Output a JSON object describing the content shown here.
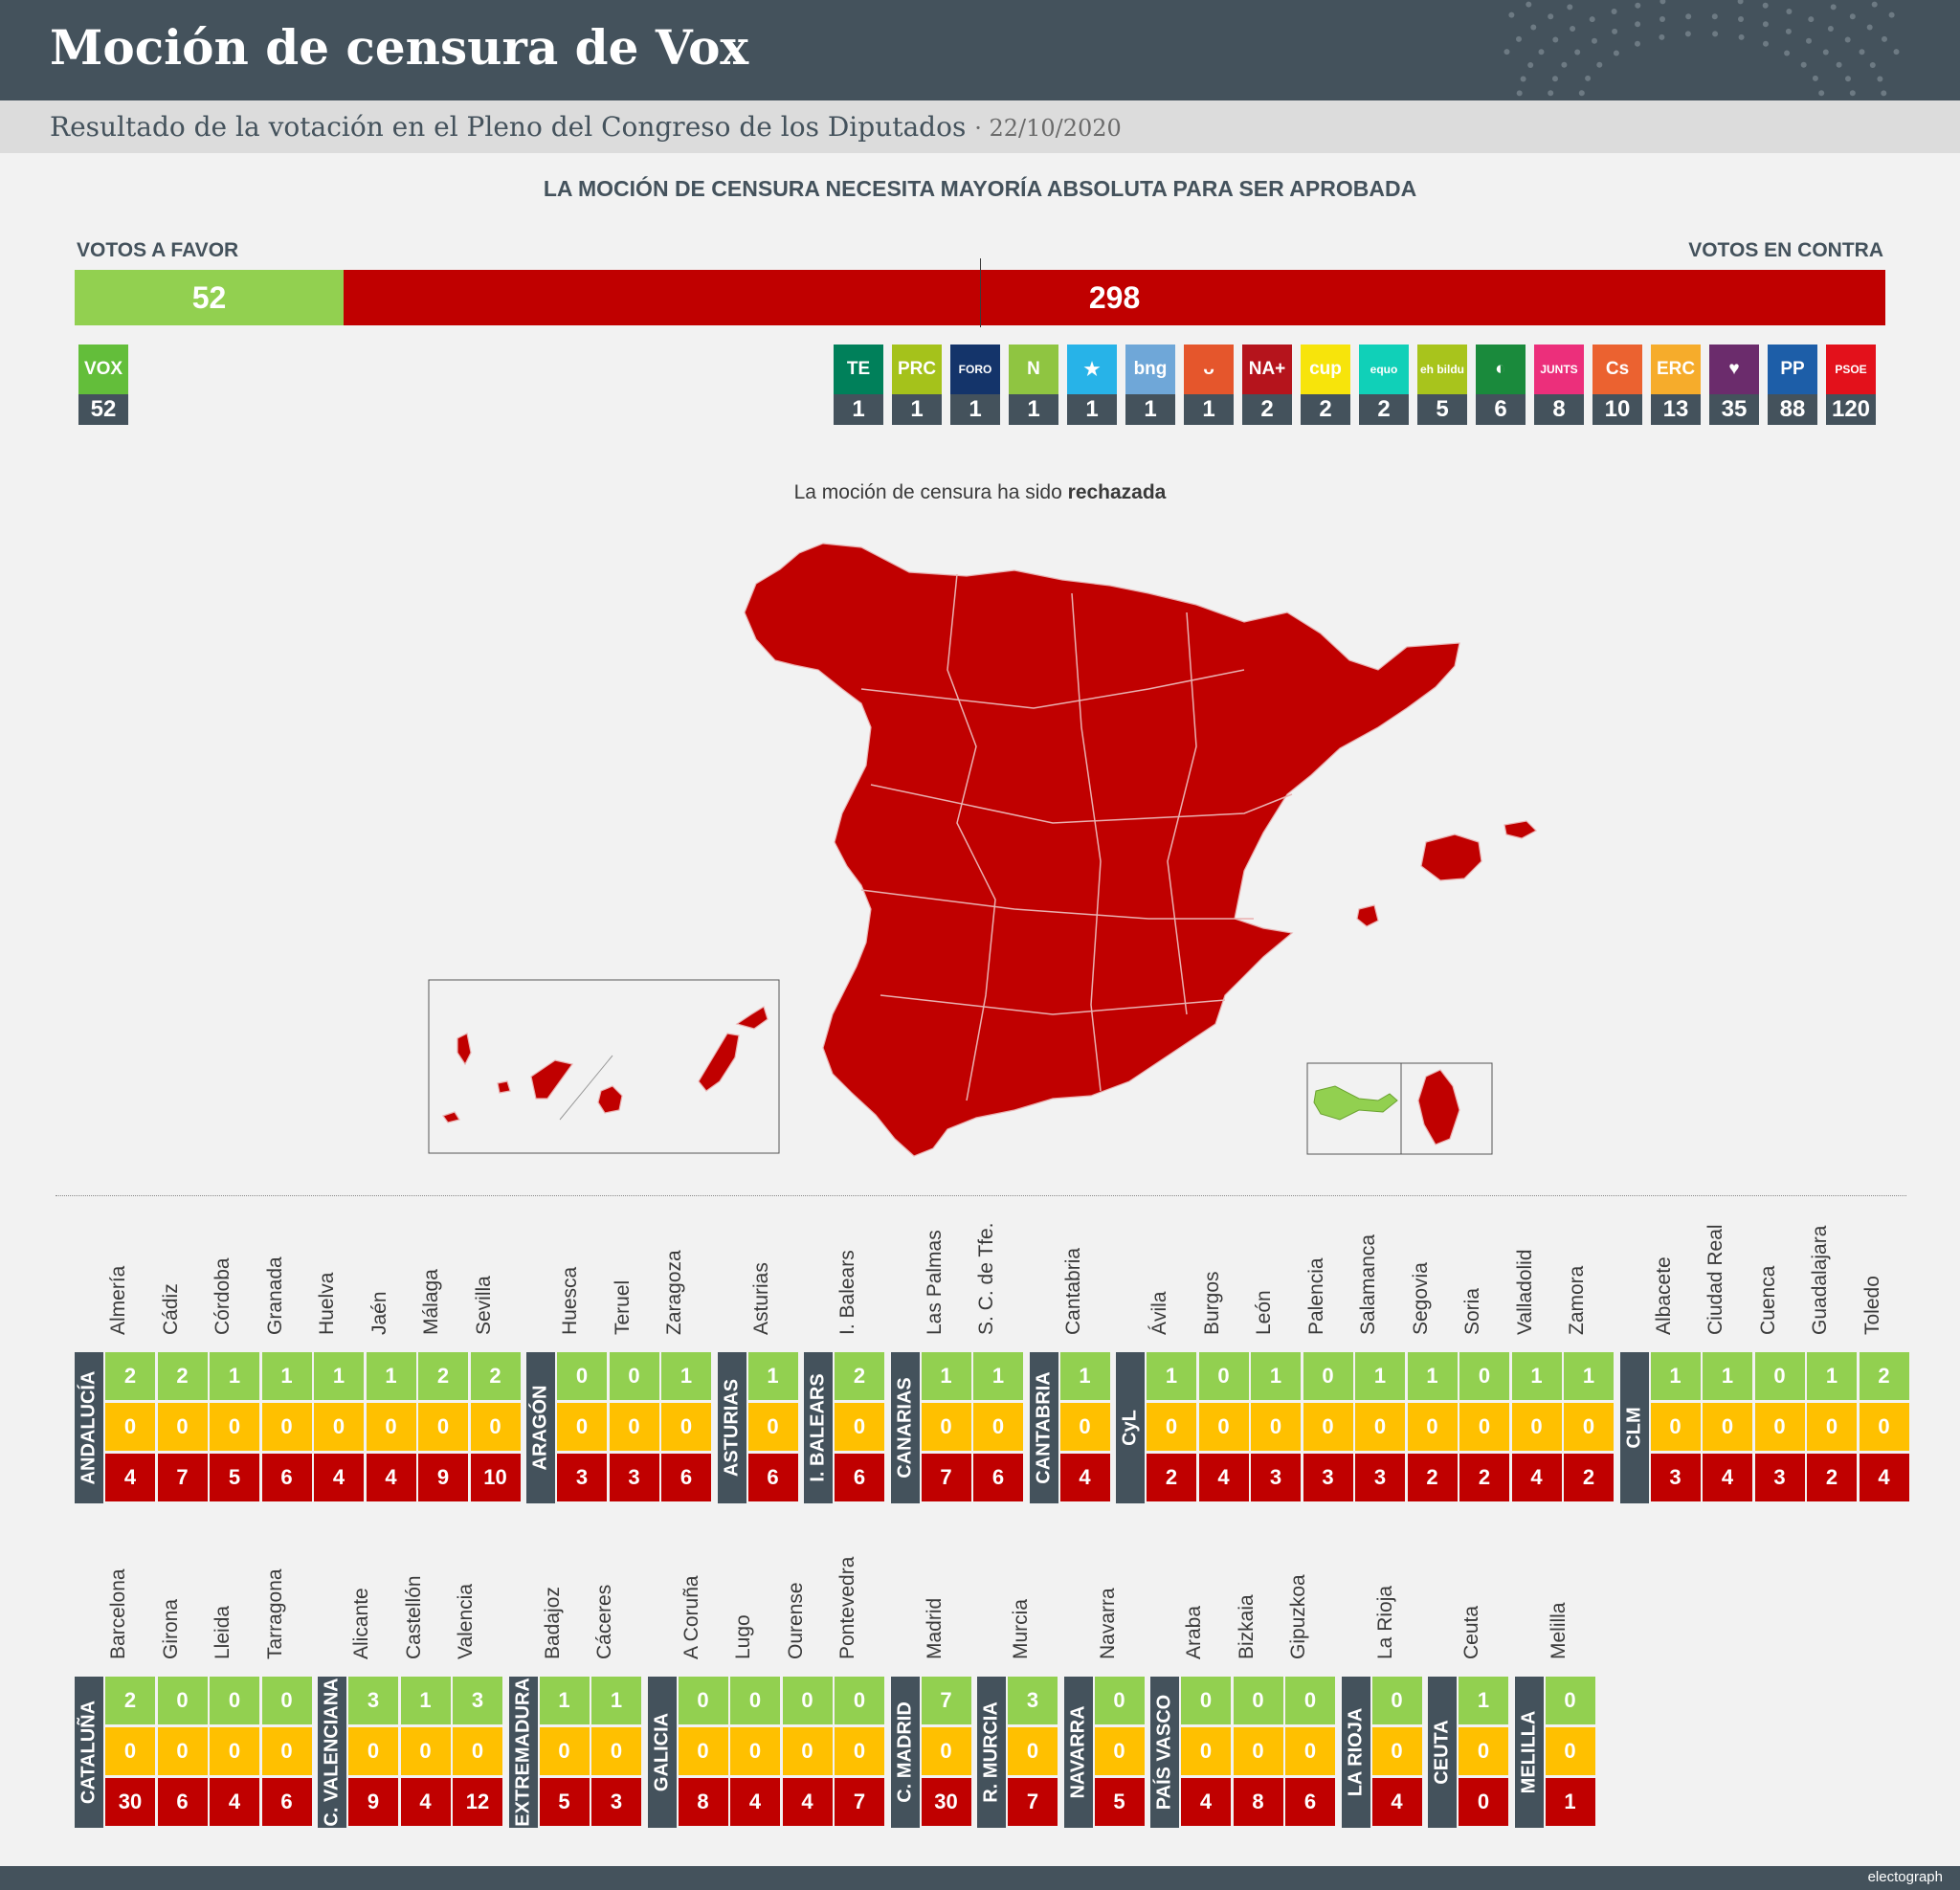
{
  "header": {
    "title": "Moción de censura de Vox",
    "subtitle": "Resultado de la votación en el Pleno del Congreso de los Diputados",
    "date": "· 22/10/2020"
  },
  "headline": "LA MOCIÓN DE CENSURA NECESITA MAYORÍA ABSOLUTA PARA SER APROBADA",
  "colors": {
    "favor": "#92d050",
    "contra": "#c00000",
    "abstencion": "#ffc000",
    "dark": "#44525c"
  },
  "chart_data": {
    "type": "bar",
    "title": "LA MOCIÓN DE CENSURA NECESITA MAYORÍA ABSOLUTA PARA SER APROBADA",
    "votes": {
      "favor_label": "VOTOS A FAVOR",
      "contra_label": "VOTOS EN CONTRA",
      "favor": 52,
      "contra": 298,
      "total_seats": 350,
      "majority": 176
    },
    "parties_favor": [
      {
        "name": "VOX",
        "logo": "VOX",
        "seats": 52,
        "color": "#63be3a"
      }
    ],
    "parties_contra": [
      {
        "name": "Teruel Existe",
        "logo": "TE",
        "seats": 1,
        "color": "#00805a"
      },
      {
        "name": "PRC",
        "logo": "PRC",
        "seats": 1,
        "color": "#a5c21b"
      },
      {
        "name": "Foro",
        "logo": "FORO",
        "seats": 1,
        "color": "#14346a"
      },
      {
        "name": "NC",
        "logo": "N",
        "seats": 1,
        "color": "#8fc541"
      },
      {
        "name": "Coalición Canaria",
        "logo": "★",
        "seats": 1,
        "color": "#27b3e8"
      },
      {
        "name": "BNG",
        "logo": "bng",
        "seats": 1,
        "color": "#6fa7d8"
      },
      {
        "name": "CUP-PR",
        "logo": "ᴗ",
        "seats": 1,
        "color": "#e5562c"
      },
      {
        "name": "NA+",
        "logo": "NA+",
        "seats": 2,
        "color": "#b5141c"
      },
      {
        "name": "CUP",
        "logo": "cup",
        "seats": 2,
        "color": "#f7e40b"
      },
      {
        "name": "Más País-Equo",
        "logo": "equo",
        "seats": 2,
        "color": "#10d0b8"
      },
      {
        "name": "EH Bildu",
        "logo": "eh bildu",
        "seats": 5,
        "color": "#a8c41c"
      },
      {
        "name": "PNV",
        "logo": "◐",
        "seats": 6,
        "color": "#1a8a3c"
      },
      {
        "name": "JxCat",
        "logo": "JUNTS",
        "seats": 8,
        "color": "#ec2f7b"
      },
      {
        "name": "Cs",
        "logo": "Cs",
        "seats": 10,
        "color": "#eb6230"
      },
      {
        "name": "ERC",
        "logo": "ERC",
        "seats": 13,
        "color": "#f6ac2b"
      },
      {
        "name": "Podemos",
        "logo": "♥",
        "seats": 35,
        "color": "#6b2c6c"
      },
      {
        "name": "PP",
        "logo": "PP",
        "seats": 88,
        "color": "#1d5ea8"
      },
      {
        "name": "PSOE",
        "logo": "PSOE",
        "seats": 120,
        "color": "#e3111b"
      }
    ],
    "result_text": "La moción de censura ha sido",
    "result_word": "rechazada",
    "regions": [
      {
        "region": "ANDALUCÍA",
        "provinces": [
          {
            "name": "Almería",
            "favor": 2,
            "abst": 0,
            "contra": 4
          },
          {
            "name": "Cádiz",
            "favor": 2,
            "abst": 0,
            "contra": 7
          },
          {
            "name": "Córdoba",
            "favor": 1,
            "abst": 0,
            "contra": 5
          },
          {
            "name": "Granada",
            "favor": 1,
            "abst": 0,
            "contra": 6
          },
          {
            "name": "Huelva",
            "favor": 1,
            "abst": 0,
            "contra": 4
          },
          {
            "name": "Jaén",
            "favor": 1,
            "abst": 0,
            "contra": 4
          },
          {
            "name": "Málaga",
            "favor": 2,
            "abst": 0,
            "contra": 9
          },
          {
            "name": "Sevilla",
            "favor": 2,
            "abst": 0,
            "contra": 10
          }
        ]
      },
      {
        "region": "ARAGÓN",
        "provinces": [
          {
            "name": "Huesca",
            "favor": 0,
            "abst": 0,
            "contra": 3
          },
          {
            "name": "Teruel",
            "favor": 0,
            "abst": 0,
            "contra": 3
          },
          {
            "name": "Zaragoza",
            "favor": 1,
            "abst": 0,
            "contra": 6
          }
        ]
      },
      {
        "region": "ASTURIAS",
        "provinces": [
          {
            "name": "Asturias",
            "favor": 1,
            "abst": 0,
            "contra": 6
          }
        ]
      },
      {
        "region": "I. BALEARS",
        "provinces": [
          {
            "name": "I. Balears",
            "favor": 2,
            "abst": 0,
            "contra": 6
          }
        ]
      },
      {
        "region": "CANARIAS",
        "provinces": [
          {
            "name": "Las Palmas",
            "favor": 1,
            "abst": 0,
            "contra": 7
          },
          {
            "name": "S. C. de Tfe.",
            "favor": 1,
            "abst": 0,
            "contra": 6
          }
        ]
      },
      {
        "region": "CANTABRIA",
        "provinces": [
          {
            "name": "Cantabria",
            "favor": 1,
            "abst": 0,
            "contra": 4
          }
        ]
      },
      {
        "region": "CyL",
        "provinces": [
          {
            "name": "Ávila",
            "favor": 1,
            "abst": 0,
            "contra": 2
          },
          {
            "name": "Burgos",
            "favor": 0,
            "abst": 0,
            "contra": 4
          },
          {
            "name": "León",
            "favor": 1,
            "abst": 0,
            "contra": 3
          },
          {
            "name": "Palencia",
            "favor": 0,
            "abst": 0,
            "contra": 3
          },
          {
            "name": "Salamanca",
            "favor": 1,
            "abst": 0,
            "contra": 3
          },
          {
            "name": "Segovia",
            "favor": 1,
            "abst": 0,
            "contra": 2
          },
          {
            "name": "Soria",
            "favor": 0,
            "abst": 0,
            "contra": 2
          },
          {
            "name": "Valladolid",
            "favor": 1,
            "abst": 0,
            "contra": 4
          },
          {
            "name": "Zamora",
            "favor": 1,
            "abst": 0,
            "contra": 2
          }
        ]
      },
      {
        "region": "CLM",
        "provinces": [
          {
            "name": "Albacete",
            "favor": 1,
            "abst": 0,
            "contra": 3
          },
          {
            "name": "Ciudad Real",
            "favor": 1,
            "abst": 0,
            "contra": 4
          },
          {
            "name": "Cuenca",
            "favor": 0,
            "abst": 0,
            "contra": 3
          },
          {
            "name": "Guadalajara",
            "favor": 1,
            "abst": 0,
            "contra": 2
          },
          {
            "name": "Toledo",
            "favor": 2,
            "abst": 0,
            "contra": 4
          }
        ]
      },
      {
        "region": "CATALUÑA",
        "provinces": [
          {
            "name": "Barcelona",
            "favor": 2,
            "abst": 0,
            "contra": 30
          },
          {
            "name": "Girona",
            "favor": 0,
            "abst": 0,
            "contra": 6
          },
          {
            "name": "Lleida",
            "favor": 0,
            "abst": 0,
            "contra": 4
          },
          {
            "name": "Tarragona",
            "favor": 0,
            "abst": 0,
            "contra": 6
          }
        ]
      },
      {
        "region": "C. VALENCIANA",
        "provinces": [
          {
            "name": "Alicante",
            "favor": 3,
            "abst": 0,
            "contra": 9
          },
          {
            "name": "Castellón",
            "favor": 1,
            "abst": 0,
            "contra": 4
          },
          {
            "name": "Valencia",
            "favor": 3,
            "abst": 0,
            "contra": 12
          }
        ]
      },
      {
        "region": "EXTREMADURA",
        "provinces": [
          {
            "name": "Badajoz",
            "favor": 1,
            "abst": 0,
            "contra": 5
          },
          {
            "name": "Cáceres",
            "favor": 1,
            "abst": 0,
            "contra": 3
          }
        ]
      },
      {
        "region": "GALICIA",
        "provinces": [
          {
            "name": "A Coruña",
            "favor": 0,
            "abst": 0,
            "contra": 8
          },
          {
            "name": "Lugo",
            "favor": 0,
            "abst": 0,
            "contra": 4
          },
          {
            "name": "Ourense",
            "favor": 0,
            "abst": 0,
            "contra": 4
          },
          {
            "name": "Pontevedra",
            "favor": 0,
            "abst": 0,
            "contra": 7
          }
        ]
      },
      {
        "region": "C. MADRID",
        "provinces": [
          {
            "name": "Madrid",
            "favor": 7,
            "abst": 0,
            "contra": 30
          }
        ]
      },
      {
        "region": "R. MURCIA",
        "provinces": [
          {
            "name": "Murcia",
            "favor": 3,
            "abst": 0,
            "contra": 7
          }
        ]
      },
      {
        "region": "NAVARRA",
        "provinces": [
          {
            "name": "Navarra",
            "favor": 0,
            "abst": 0,
            "contra": 5
          }
        ]
      },
      {
        "region": "PAÍS VASCO",
        "provinces": [
          {
            "name": "Araba",
            "favor": 0,
            "abst": 0,
            "contra": 4
          },
          {
            "name": "Bizkaia",
            "favor": 0,
            "abst": 0,
            "contra": 8
          },
          {
            "name": "Gipuzkoa",
            "favor": 0,
            "abst": 0,
            "contra": 6
          }
        ]
      },
      {
        "region": "LA RIOJA",
        "provinces": [
          {
            "name": "La Rioja",
            "favor": 0,
            "abst": 0,
            "contra": 4
          }
        ]
      },
      {
        "region": "CEUTA",
        "provinces": [
          {
            "name": "Ceuta",
            "favor": 1,
            "abst": 0,
            "contra": 0
          }
        ]
      },
      {
        "region": "MELILLA",
        "provinces": [
          {
            "name": "Melilla",
            "favor": 0,
            "abst": 0,
            "contra": 1
          }
        ]
      }
    ]
  },
  "footer": {
    "brand": "electograph"
  }
}
